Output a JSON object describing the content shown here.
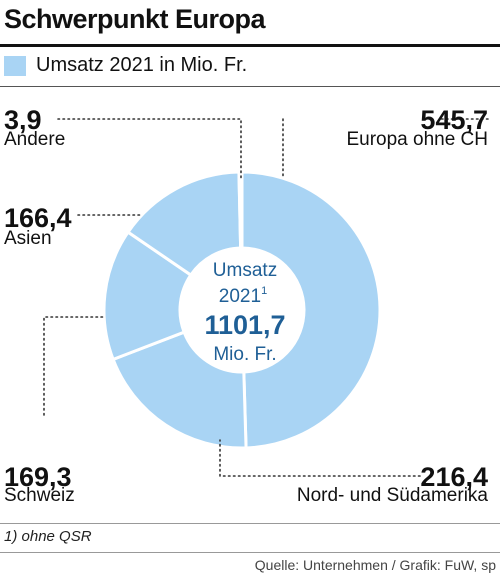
{
  "title": "Schwerpunkt Europa",
  "legend_label": "Umsatz 2021 in Mio. Fr.",
  "center": {
    "line1": "Umsatz",
    "line2": "2021",
    "line2_sup": "1",
    "total": "1101,7",
    "unit": "Mio. Fr."
  },
  "footnote": "1) ohne QSR",
  "source": "Quelle: Unternehmen / Grafik: FuW, sp",
  "colors": {
    "slice": "#a9d4f4",
    "separator": "#ffffff",
    "text": "#111111"
  },
  "chart_data": {
    "type": "pie",
    "variant": "donut",
    "title": "Schwerpunkt Europa",
    "series": [
      {
        "name": "Umsatz 2021 in Mio. Fr.",
        "slices": [
          {
            "label": "Europa ohne CH",
            "value": 545.7,
            "value_text": "545,7"
          },
          {
            "label": "Nord- und Südamerika",
            "value": 216.4,
            "value_text": "216,4"
          },
          {
            "label": "Schweiz",
            "value": 169.3,
            "value_text": "169,3"
          },
          {
            "label": "Asien",
            "value": 166.4,
            "value_text": "166,4"
          },
          {
            "label": "Andere",
            "value": 3.9,
            "value_text": "3,9"
          }
        ]
      }
    ],
    "total": 1101.7,
    "total_text": "1101,7"
  }
}
